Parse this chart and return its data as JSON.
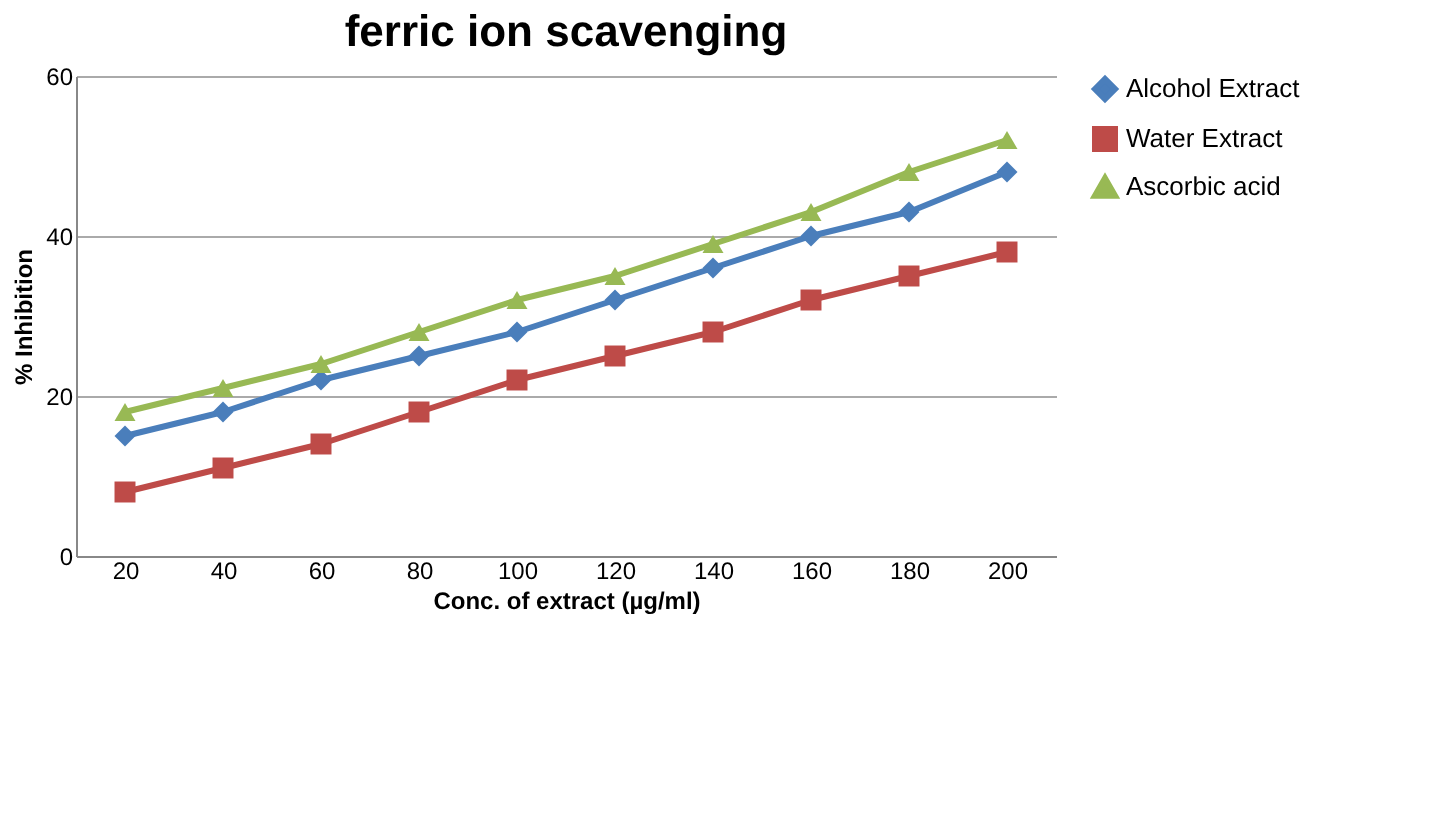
{
  "chart_data": {
    "type": "line",
    "title": "ferric ion scavenging",
    "xlabel": "Conc. of extract (µg/ml)",
    "ylabel": "% Inhibition",
    "categories": [
      "20",
      "40",
      "60",
      "80",
      "100",
      "120",
      "140",
      "160",
      "180",
      "200"
    ],
    "series": [
      {
        "name": "Alcohol Extract",
        "color": "#4a7ebb",
        "marker": "diamond",
        "values": [
          15,
          18,
          22,
          25,
          28,
          32,
          36,
          40,
          43,
          48
        ]
      },
      {
        "name": "Water Extract",
        "color": "#be4b48",
        "marker": "square",
        "values": [
          8,
          11,
          14,
          18,
          22,
          25,
          28,
          32,
          35,
          38
        ]
      },
      {
        "name": "Ascorbic acid",
        "color": "#98b954",
        "marker": "triangle",
        "values": [
          18,
          21,
          24,
          28,
          32,
          35,
          39,
          43,
          48,
          52
        ]
      }
    ],
    "ylim": [
      0,
      60
    ],
    "yticks": [
      0,
      20,
      40,
      60
    ],
    "grid": "y",
    "legend": "right"
  }
}
